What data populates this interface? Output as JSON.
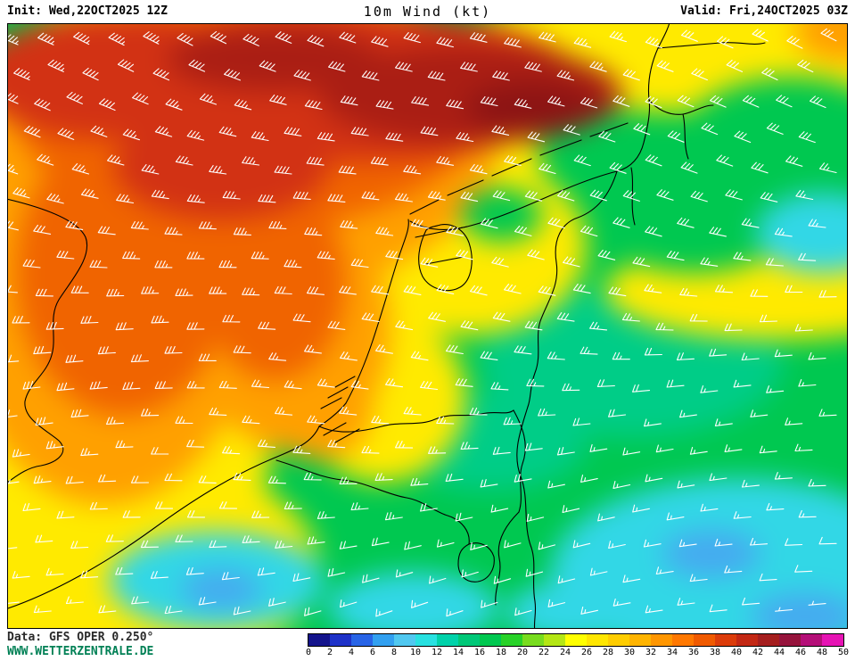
{
  "header": {
    "init_label": "Init: Wed,22OCT2025 12Z",
    "title": "10m Wind (kt)",
    "valid_label": "Valid: Fri,24OCT2025 03Z"
  },
  "footer": {
    "data_source": "Data: GFS OPER 0.250°",
    "website": "WWW.WETTERZENTRALE.DE"
  },
  "scale": {
    "unit": "kt",
    "min": 0,
    "max": 50,
    "step": 2,
    "tick_labels": [
      "0",
      "2",
      "4",
      "6",
      "8",
      "10",
      "12",
      "14",
      "16",
      "18",
      "20",
      "22",
      "24",
      "26",
      "28",
      "30",
      "32",
      "34",
      "36",
      "38",
      "40",
      "42",
      "44",
      "46",
      "48",
      "50"
    ],
    "colors": [
      "#14148c",
      "#1e32c8",
      "#2864e6",
      "#32a0f0",
      "#50c8f0",
      "#28e1e1",
      "#00d2aa",
      "#00c878",
      "#00c850",
      "#28d228",
      "#78dc1e",
      "#b4e614",
      "#ffff00",
      "#ffe600",
      "#ffcd00",
      "#ffb400",
      "#ff9600",
      "#ff7800",
      "#f05a00",
      "#dc3c0a",
      "#c32814",
      "#a51e1e",
      "#96143c",
      "#b40f78",
      "#e614b4"
    ]
  },
  "map": {
    "barb_color": "#ffffff",
    "coast_color": "#000000",
    "background_color": "#00c850"
  }
}
